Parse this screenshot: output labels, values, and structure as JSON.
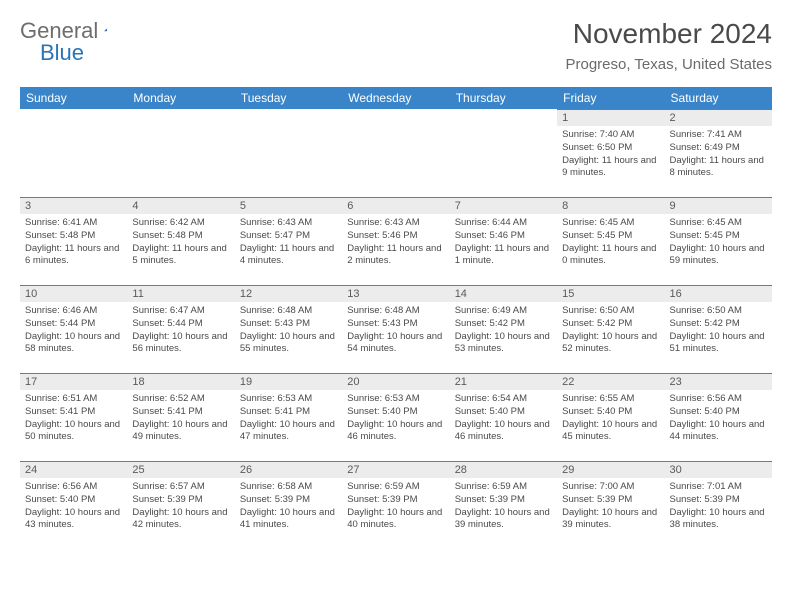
{
  "logo": {
    "part1": "General",
    "part2": "Blue"
  },
  "title": "November 2024",
  "location": "Progreso, Texas, United States",
  "colors": {
    "header_bg": "#3a85c9",
    "header_text": "#ffffff",
    "daynum_bg": "#ececec",
    "daynum_border": "#5a7fa0",
    "text": "#4a4a4a",
    "logo_gray": "#6d6d6d",
    "logo_blue": "#2a74b8"
  },
  "typography": {
    "title_fontsize": 28,
    "location_fontsize": 15,
    "dayheader_fontsize": 12,
    "daynum_fontsize": 11,
    "body_fontsize": 9.5
  },
  "layout": {
    "columns": 7,
    "rows": 5
  },
  "day_headers": [
    "Sunday",
    "Monday",
    "Tuesday",
    "Wednesday",
    "Thursday",
    "Friday",
    "Saturday"
  ],
  "weeks": [
    [
      {
        "day": ""
      },
      {
        "day": ""
      },
      {
        "day": ""
      },
      {
        "day": ""
      },
      {
        "day": ""
      },
      {
        "day": "1",
        "sunrise": "Sunrise: 7:40 AM",
        "sunset": "Sunset: 6:50 PM",
        "daylight": "Daylight: 11 hours and 9 minutes."
      },
      {
        "day": "2",
        "sunrise": "Sunrise: 7:41 AM",
        "sunset": "Sunset: 6:49 PM",
        "daylight": "Daylight: 11 hours and 8 minutes."
      }
    ],
    [
      {
        "day": "3",
        "sunrise": "Sunrise: 6:41 AM",
        "sunset": "Sunset: 5:48 PM",
        "daylight": "Daylight: 11 hours and 6 minutes."
      },
      {
        "day": "4",
        "sunrise": "Sunrise: 6:42 AM",
        "sunset": "Sunset: 5:48 PM",
        "daylight": "Daylight: 11 hours and 5 minutes."
      },
      {
        "day": "5",
        "sunrise": "Sunrise: 6:43 AM",
        "sunset": "Sunset: 5:47 PM",
        "daylight": "Daylight: 11 hours and 4 minutes."
      },
      {
        "day": "6",
        "sunrise": "Sunrise: 6:43 AM",
        "sunset": "Sunset: 5:46 PM",
        "daylight": "Daylight: 11 hours and 2 minutes."
      },
      {
        "day": "7",
        "sunrise": "Sunrise: 6:44 AM",
        "sunset": "Sunset: 5:46 PM",
        "daylight": "Daylight: 11 hours and 1 minute."
      },
      {
        "day": "8",
        "sunrise": "Sunrise: 6:45 AM",
        "sunset": "Sunset: 5:45 PM",
        "daylight": "Daylight: 11 hours and 0 minutes."
      },
      {
        "day": "9",
        "sunrise": "Sunrise: 6:45 AM",
        "sunset": "Sunset: 5:45 PM",
        "daylight": "Daylight: 10 hours and 59 minutes."
      }
    ],
    [
      {
        "day": "10",
        "sunrise": "Sunrise: 6:46 AM",
        "sunset": "Sunset: 5:44 PM",
        "daylight": "Daylight: 10 hours and 58 minutes."
      },
      {
        "day": "11",
        "sunrise": "Sunrise: 6:47 AM",
        "sunset": "Sunset: 5:44 PM",
        "daylight": "Daylight: 10 hours and 56 minutes."
      },
      {
        "day": "12",
        "sunrise": "Sunrise: 6:48 AM",
        "sunset": "Sunset: 5:43 PM",
        "daylight": "Daylight: 10 hours and 55 minutes."
      },
      {
        "day": "13",
        "sunrise": "Sunrise: 6:48 AM",
        "sunset": "Sunset: 5:43 PM",
        "daylight": "Daylight: 10 hours and 54 minutes."
      },
      {
        "day": "14",
        "sunrise": "Sunrise: 6:49 AM",
        "sunset": "Sunset: 5:42 PM",
        "daylight": "Daylight: 10 hours and 53 minutes."
      },
      {
        "day": "15",
        "sunrise": "Sunrise: 6:50 AM",
        "sunset": "Sunset: 5:42 PM",
        "daylight": "Daylight: 10 hours and 52 minutes."
      },
      {
        "day": "16",
        "sunrise": "Sunrise: 6:50 AM",
        "sunset": "Sunset: 5:42 PM",
        "daylight": "Daylight: 10 hours and 51 minutes."
      }
    ],
    [
      {
        "day": "17",
        "sunrise": "Sunrise: 6:51 AM",
        "sunset": "Sunset: 5:41 PM",
        "daylight": "Daylight: 10 hours and 50 minutes."
      },
      {
        "day": "18",
        "sunrise": "Sunrise: 6:52 AM",
        "sunset": "Sunset: 5:41 PM",
        "daylight": "Daylight: 10 hours and 49 minutes."
      },
      {
        "day": "19",
        "sunrise": "Sunrise: 6:53 AM",
        "sunset": "Sunset: 5:41 PM",
        "daylight": "Daylight: 10 hours and 47 minutes."
      },
      {
        "day": "20",
        "sunrise": "Sunrise: 6:53 AM",
        "sunset": "Sunset: 5:40 PM",
        "daylight": "Daylight: 10 hours and 46 minutes."
      },
      {
        "day": "21",
        "sunrise": "Sunrise: 6:54 AM",
        "sunset": "Sunset: 5:40 PM",
        "daylight": "Daylight: 10 hours and 46 minutes."
      },
      {
        "day": "22",
        "sunrise": "Sunrise: 6:55 AM",
        "sunset": "Sunset: 5:40 PM",
        "daylight": "Daylight: 10 hours and 45 minutes."
      },
      {
        "day": "23",
        "sunrise": "Sunrise: 6:56 AM",
        "sunset": "Sunset: 5:40 PM",
        "daylight": "Daylight: 10 hours and 44 minutes."
      }
    ],
    [
      {
        "day": "24",
        "sunrise": "Sunrise: 6:56 AM",
        "sunset": "Sunset: 5:40 PM",
        "daylight": "Daylight: 10 hours and 43 minutes."
      },
      {
        "day": "25",
        "sunrise": "Sunrise: 6:57 AM",
        "sunset": "Sunset: 5:39 PM",
        "daylight": "Daylight: 10 hours and 42 minutes."
      },
      {
        "day": "26",
        "sunrise": "Sunrise: 6:58 AM",
        "sunset": "Sunset: 5:39 PM",
        "daylight": "Daylight: 10 hours and 41 minutes."
      },
      {
        "day": "27",
        "sunrise": "Sunrise: 6:59 AM",
        "sunset": "Sunset: 5:39 PM",
        "daylight": "Daylight: 10 hours and 40 minutes."
      },
      {
        "day": "28",
        "sunrise": "Sunrise: 6:59 AM",
        "sunset": "Sunset: 5:39 PM",
        "daylight": "Daylight: 10 hours and 39 minutes."
      },
      {
        "day": "29",
        "sunrise": "Sunrise: 7:00 AM",
        "sunset": "Sunset: 5:39 PM",
        "daylight": "Daylight: 10 hours and 39 minutes."
      },
      {
        "day": "30",
        "sunrise": "Sunrise: 7:01 AM",
        "sunset": "Sunset: 5:39 PM",
        "daylight": "Daylight: 10 hours and 38 minutes."
      }
    ]
  ]
}
